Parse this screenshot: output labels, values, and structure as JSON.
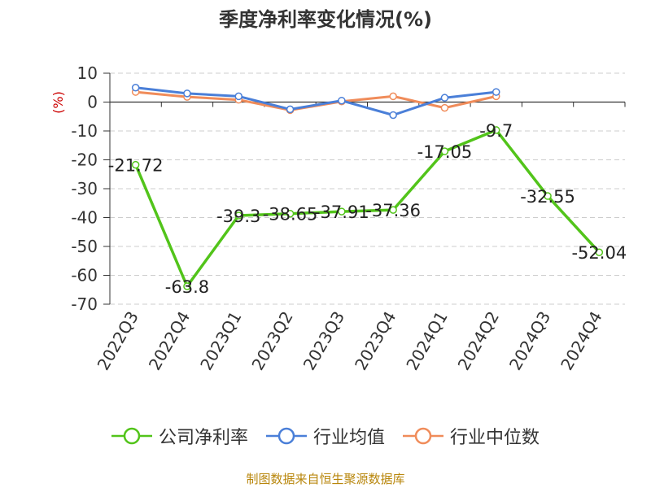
{
  "chart_data": {
    "type": "line",
    "title": "季度净利率变化情况(%)",
    "ylabel": "(%)",
    "xlabel": "",
    "categories": [
      "2022Q3",
      "2022Q4",
      "2023Q1",
      "2023Q2",
      "2023Q3",
      "2023Q4",
      "2024Q1",
      "2024Q2",
      "2024Q3",
      "2024Q4"
    ],
    "ylim": [
      -70,
      10
    ],
    "yticks": [
      10,
      0,
      -10,
      -20,
      -30,
      -40,
      -50,
      -60,
      -70
    ],
    "grid": true,
    "legend_position": "bottom",
    "series": [
      {
        "name": "公司净利率",
        "color": "#52c41a",
        "values": [
          -21.72,
          -63.8,
          -39.3,
          -38.65,
          -37.91,
          -37.36,
          -17.05,
          -9.7,
          -32.55,
          -52.04
        ],
        "labels": [
          "-21.72",
          "-63.8",
          "-39.3",
          "-38.65",
          "-37.91",
          "-37.36",
          "-17.05",
          "-9.7",
          "-32.55",
          "-52.04"
        ]
      },
      {
        "name": "行业均值",
        "color": "#4a7fd8",
        "values": [
          5.0,
          3.0,
          2.0,
          -2.5,
          0.5,
          -4.5,
          1.5,
          3.5,
          null,
          null
        ]
      },
      {
        "name": "行业中位数",
        "color": "#f08c5a",
        "values": [
          3.5,
          1.8,
          0.8,
          -2.8,
          0.2,
          2.0,
          -2.0,
          2.0,
          null,
          null
        ]
      }
    ]
  },
  "footer": {
    "source": "制图数据来自恒生聚源数据库"
  }
}
